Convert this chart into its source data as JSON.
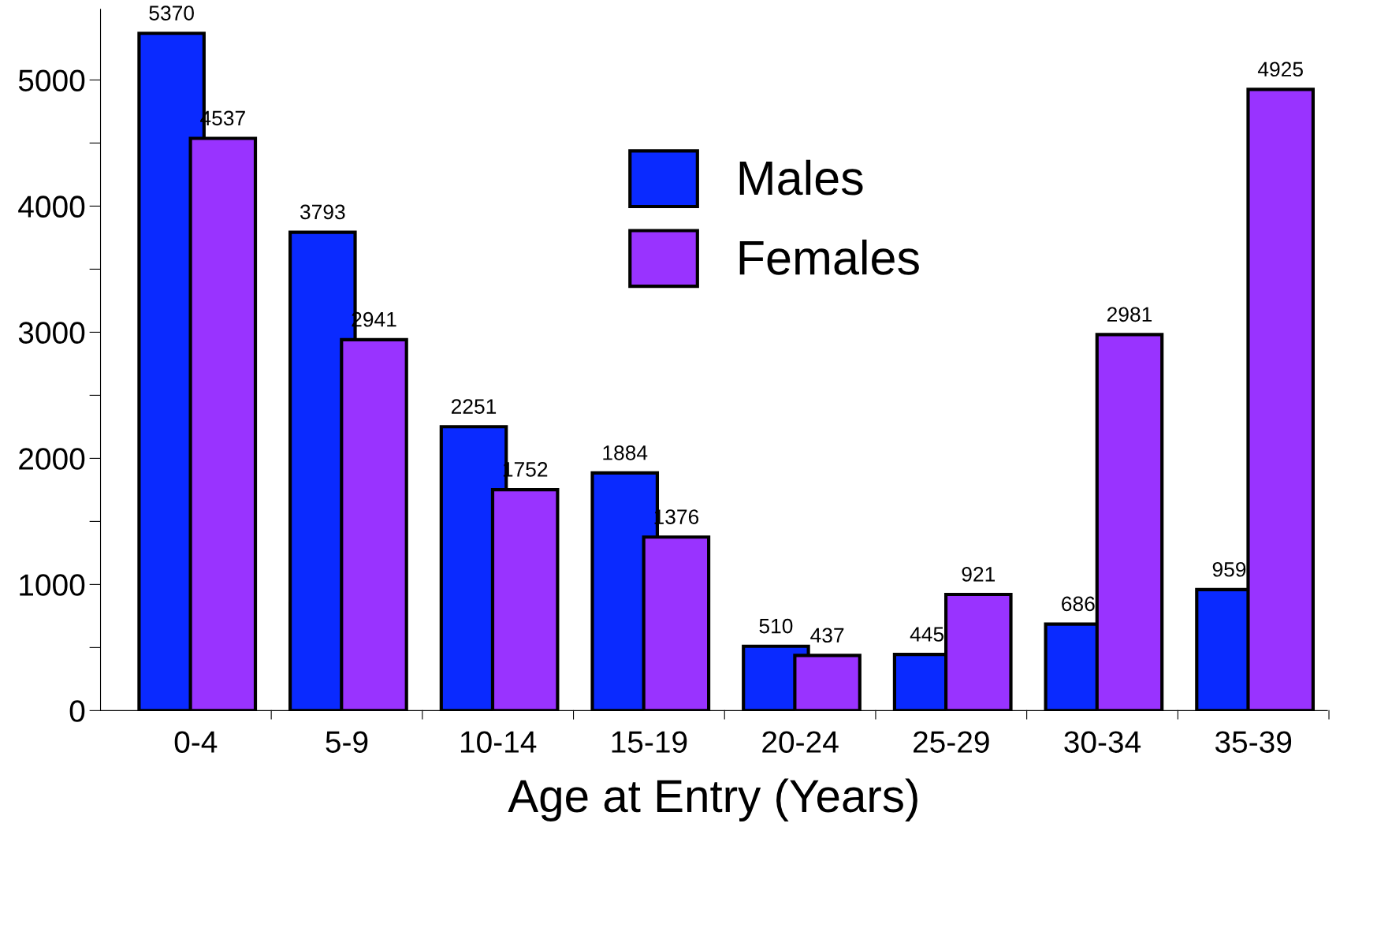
{
  "chart_data": {
    "type": "bar",
    "xlabel": "Age at Entry (Years)",
    "categories": [
      "0-4",
      "5-9",
      "10-14",
      "15-19",
      "20-24",
      "25-29",
      "30-34",
      "35-39"
    ],
    "series": [
      {
        "name": "Males",
        "color": "#0a2aff",
        "values": [
          5370,
          3793,
          2251,
          1884,
          510,
          445,
          686,
          959
        ]
      },
      {
        "name": "Females",
        "color": "#9933ff",
        "values": [
          4537,
          2941,
          1752,
          1376,
          437,
          921,
          2981,
          4925
        ]
      }
    ],
    "ylim": [
      0,
      5560
    ],
    "yticks": [
      0,
      {
        "value": 500,
        "label": null
      },
      1000,
      {
        "value": 1500,
        "label": null
      },
      2000,
      {
        "value": 2500,
        "label": null
      },
      3000,
      {
        "value": 3500,
        "label": null
      },
      4000,
      {
        "value": 4500,
        "label": null
      },
      5000
    ],
    "data_labels": true,
    "legend": "top",
    "grid": false
  }
}
